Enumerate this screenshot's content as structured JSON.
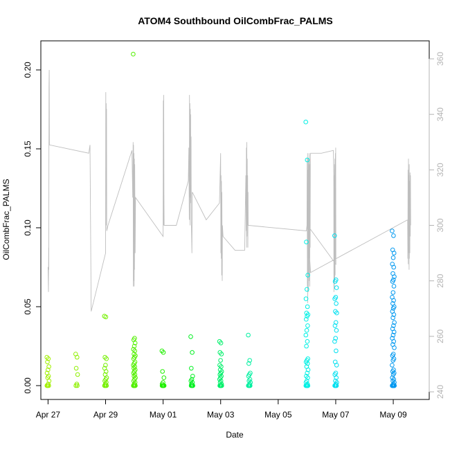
{
  "chart_data": {
    "type": "scatter",
    "title": "ATOM4 Southbound OilCombFrac_PALMS",
    "xlabel": "Date",
    "ylabel": "OilCombFrac_PALMS",
    "ylim": [
      0,
      0.21
    ],
    "y_ticks": [
      0.0,
      0.05,
      0.1,
      0.15,
      0.2
    ],
    "y_tick_labels": [
      "0.00",
      "0.05",
      "0.10",
      "0.15",
      "0.20"
    ],
    "y2lim": [
      240,
      360
    ],
    "y2_ticks": [
      240,
      260,
      280,
      300,
      320,
      340,
      360
    ],
    "y2_tick_labels": [
      "240",
      "260",
      "280",
      "300",
      "320",
      "340",
      "360"
    ],
    "x_axis_type": "date",
    "x_range": [
      "2018-04-26T18:00",
      "2018-05-10T06:00"
    ],
    "x_ticks": [
      "2018-04-27",
      "2018-04-29",
      "2018-05-01",
      "2018-05-03",
      "2018-05-05",
      "2018-05-07",
      "2018-05-09"
    ],
    "x_tick_labels": [
      "Apr 27",
      "Apr 29",
      "May 01",
      "May 03",
      "May 05",
      "May 07",
      "May 09"
    ],
    "grid": false,
    "marker_colors": "rainbow gradient by date, yellow-green (Apr 27) to blue (May 09)",
    "secondary_line_color": "#bebebe",
    "flights": [
      {
        "date": "2018-04-27",
        "color": "#a0f000",
        "values": [
          0.018,
          0.017,
          0.015,
          0.012,
          0.01,
          0.008,
          0.006,
          0.005,
          0.003,
          0.001,
          0,
          0,
          0,
          0
        ]
      },
      {
        "date": "2018-04-28",
        "color": "#8ef000",
        "values": [
          0.02,
          0.018,
          0.011,
          0.007,
          0.001,
          0,
          0
        ]
      },
      {
        "date": "2018-04-29",
        "color": "#74f000",
        "values": [
          0.044,
          0.0435,
          0.018,
          0.017,
          0.013,
          0.011,
          0.009,
          0.007,
          0.005,
          0.004,
          0.003,
          0.002,
          0.001,
          0,
          0,
          0,
          0
        ]
      },
      {
        "date": "2018-04-30",
        "color": "#52f000",
        "values": [
          0.21,
          0.03,
          0.029,
          0.027,
          0.025,
          0.023,
          0.022,
          0.02,
          0.019,
          0.018,
          0.017,
          0.015,
          0.014,
          0.013,
          0.012,
          0.011,
          0.01,
          0.009,
          0.008,
          0.007,
          0.006,
          0.005,
          0.004,
          0.003,
          0.002,
          0.001,
          0,
          0,
          0,
          0,
          0,
          0,
          0,
          0
        ]
      },
      {
        "date": "2018-05-01",
        "color": "#20f000",
        "values": [
          0.022,
          0.021,
          0.009,
          0.005,
          0.002,
          0.001,
          0,
          0,
          0,
          0,
          0,
          0,
          0,
          0
        ]
      },
      {
        "date": "2018-05-02",
        "color": "#00f020",
        "values": [
          0.031,
          0.021,
          0.011,
          0.006,
          0.004,
          0.003,
          0.002,
          0.001,
          0,
          0,
          0,
          0,
          0
        ]
      },
      {
        "date": "2018-05-03",
        "color": "#00f06a",
        "values": [
          0.028,
          0.027,
          0.021,
          0.02,
          0.016,
          0.013,
          0.012,
          0.01,
          0.009,
          0.008,
          0.007,
          0.006,
          0.005,
          0.004,
          0.003,
          0.002,
          0.001,
          0,
          0,
          0,
          0,
          0,
          0,
          0
        ]
      },
      {
        "date": "2018-05-04",
        "color": "#00f0a0",
        "values": [
          0.032,
          0.016,
          0.014,
          0.008,
          0.007,
          0.006,
          0.004,
          0.003,
          0.002,
          0.001,
          0,
          0,
          0,
          0,
          0
        ]
      },
      {
        "date": "2018-05-06",
        "color": "#00f0e4",
        "values": [
          0.167,
          0.143,
          0.091,
          0.07,
          0.061,
          0.055,
          0.05,
          0.046,
          0.045,
          0.044,
          0.042,
          0.038,
          0.035,
          0.032,
          0.028,
          0.025,
          0.017,
          0.016,
          0.015,
          0.014,
          0.012,
          0.01,
          0.008,
          0.006,
          0.005,
          0.003,
          0.002,
          0.001,
          0,
          0,
          0,
          0,
          0,
          0,
          0,
          0,
          0,
          0
        ]
      },
      {
        "date": "2018-05-07",
        "color": "#00e0f0",
        "values": [
          0.095,
          0.067,
          0.066,
          0.062,
          0.056,
          0.055,
          0.052,
          0.047,
          0.046,
          0.04,
          0.038,
          0.035,
          0.03,
          0.028,
          0.022,
          0.015,
          0.013,
          0.008,
          0.007,
          0.005,
          0.003,
          0.002,
          0.001,
          0,
          0,
          0,
          0,
          0,
          0
        ]
      },
      {
        "date": "2018-05-09",
        "color": "#0098f0",
        "values": [
          0.098,
          0.095,
          0.086,
          0.084,
          0.081,
          0.077,
          0.075,
          0.071,
          0.069,
          0.067,
          0.066,
          0.063,
          0.059,
          0.056,
          0.054,
          0.052,
          0.05,
          0.049,
          0.047,
          0.045,
          0.043,
          0.04,
          0.038,
          0.036,
          0.034,
          0.032,
          0.03,
          0.028,
          0.026,
          0.024,
          0.02,
          0.019,
          0.017,
          0.016,
          0.013,
          0.01,
          0.009,
          0.008,
          0.007,
          0.005,
          0.004,
          0.003,
          0.002,
          0.001,
          0,
          0,
          0,
          0,
          0,
          0,
          0,
          0,
          0,
          0,
          0,
          0
        ]
      }
    ],
    "secondary_series": {
      "axis": "right",
      "color": "#bebebe",
      "points": [
        [
          "2018-04-27T00:00",
          285
        ],
        [
          "2018-04-27T00:20",
          276
        ],
        [
          "2018-04-27T00:30",
          292
        ],
        [
          "2018-04-27T00:40",
          284
        ],
        [
          "2018-04-27T00:50",
          350
        ],
        [
          "2018-04-27T01:00",
          356
        ],
        [
          "2018-04-27T01:10",
          329
        ],
        [
          "2018-04-28T10:00",
          326
        ],
        [
          "2018-04-28T11:00",
          329
        ],
        [
          "2018-04-28T12:00",
          269
        ],
        [
          "2018-04-29T00:00",
          290
        ],
        [
          "2018-04-29T00:10",
          348
        ],
        [
          "2018-04-29T00:20",
          300
        ],
        [
          "2018-04-29T00:30",
          344
        ],
        [
          "2018-04-29T00:40",
          327
        ],
        [
          "2018-04-29T00:50",
          342
        ],
        [
          "2018-04-29T01:00",
          298
        ],
        [
          "2018-04-29T02:00",
          300
        ],
        [
          "2018-04-29T22:00",
          327
        ],
        [
          "2018-04-29T22:40",
          310
        ],
        [
          "2018-04-29T23:00",
          330
        ],
        [
          "2018-04-29T23:10",
          278
        ],
        [
          "2018-04-29T23:20",
          329
        ],
        [
          "2018-04-29T23:30",
          280
        ],
        [
          "2018-04-29T23:40",
          326
        ],
        [
          "2018-04-29T23:50",
          278
        ],
        [
          "2018-04-30T00:00",
          324
        ],
        [
          "2018-04-30T00:10",
          284
        ],
        [
          "2018-04-30T00:20",
          322
        ],
        [
          "2018-04-30T00:40",
          290
        ],
        [
          "2018-04-30T01:00",
          310
        ],
        [
          "2018-05-01T00:00",
          296
        ],
        [
          "2018-05-01T00:10",
          345
        ],
        [
          "2018-05-01T00:20",
          300
        ],
        [
          "2018-05-01T00:30",
          347
        ],
        [
          "2018-05-01T00:40",
          312
        ],
        [
          "2018-05-01T00:50",
          300
        ],
        [
          "2018-05-01T11:00",
          300
        ],
        [
          "2018-05-01T21:00",
          316
        ],
        [
          "2018-05-01T21:30",
          328
        ],
        [
          "2018-05-01T21:50",
          302
        ],
        [
          "2018-05-01T22:00",
          347
        ],
        [
          "2018-05-01T22:10",
          310
        ],
        [
          "2018-05-01T22:20",
          344
        ],
        [
          "2018-05-01T22:30",
          300
        ],
        [
          "2018-05-01T22:40",
          342
        ],
        [
          "2018-05-01T22:50",
          310
        ],
        [
          "2018-05-01T23:00",
          340
        ],
        [
          "2018-05-01T23:10",
          308
        ],
        [
          "2018-05-01T23:20",
          332
        ],
        [
          "2018-05-01T23:30",
          302
        ],
        [
          "2018-05-02T00:00",
          290
        ],
        [
          "2018-05-02T00:20",
          312
        ],
        [
          "2018-05-02T12:00",
          302
        ],
        [
          "2018-05-02T23:00",
          308
        ],
        [
          "2018-05-03T00:00",
          326
        ],
        [
          "2018-05-03T00:10",
          290
        ],
        [
          "2018-05-03T00:20",
          318
        ],
        [
          "2018-05-03T00:30",
          288
        ],
        [
          "2018-05-03T00:40",
          316
        ],
        [
          "2018-05-03T00:50",
          282
        ],
        [
          "2018-05-03T01:00",
          312
        ],
        [
          "2018-05-03T01:10",
          298
        ],
        [
          "2018-05-03T01:20",
          280
        ],
        [
          "2018-05-03T01:30",
          300
        ],
        [
          "2018-05-03T02:00",
          296
        ],
        [
          "2018-05-03T12:00",
          291
        ],
        [
          "2018-05-03T20:00",
          291
        ],
        [
          "2018-05-03T21:00",
          318
        ],
        [
          "2018-05-03T21:20",
          298
        ],
        [
          "2018-05-03T21:30",
          328
        ],
        [
          "2018-05-03T21:40",
          292
        ],
        [
          "2018-05-03T21:50",
          330
        ],
        [
          "2018-05-03T22:00",
          296
        ],
        [
          "2018-05-03T22:10",
          324
        ],
        [
          "2018-05-03T22:20",
          300
        ],
        [
          "2018-05-03T22:30",
          318
        ],
        [
          "2018-05-03T22:40",
          292
        ],
        [
          "2018-05-03T22:50",
          312
        ],
        [
          "2018-05-03T23:00",
          300
        ],
        [
          "2018-05-05T23:30",
          298
        ],
        [
          "2018-05-06T00:00",
          300
        ],
        [
          "2018-05-06T00:10",
          324
        ],
        [
          "2018-05-06T00:20",
          278
        ],
        [
          "2018-05-06T00:30",
          326
        ],
        [
          "2018-05-06T00:40",
          272
        ],
        [
          "2018-05-06T00:50",
          320
        ],
        [
          "2018-05-06T01:00",
          282
        ],
        [
          "2018-05-06T01:10",
          324
        ],
        [
          "2018-05-06T01:20",
          276
        ],
        [
          "2018-05-06T01:30",
          322
        ],
        [
          "2018-05-06T01:40",
          280
        ],
        [
          "2018-05-06T01:50",
          326
        ],
        [
          "2018-05-06T02:00",
          290
        ],
        [
          "2018-05-06T02:10",
          324
        ],
        [
          "2018-05-06T02:20",
          278
        ],
        [
          "2018-05-06T02:30",
          322
        ],
        [
          "2018-05-06T02:40",
          292
        ],
        [
          "2018-05-06T02:50",
          325
        ],
        [
          "2018-05-06T03:00",
          326
        ],
        [
          "2018-05-06T12:00",
          326
        ],
        [
          "2018-05-06T22:00",
          327
        ],
        [
          "2018-05-06T22:20",
          318
        ],
        [
          "2018-05-06T22:30",
          276
        ],
        [
          "2018-05-06T22:40",
          318
        ],
        [
          "2018-05-06T22:50",
          278
        ],
        [
          "2018-05-06T23:00",
          322
        ],
        [
          "2018-05-06T23:10",
          280
        ],
        [
          "2018-05-06T23:20",
          324
        ],
        [
          "2018-05-06T23:30",
          282
        ],
        [
          "2018-05-06T23:40",
          326
        ],
        [
          "2018-05-06T23:50",
          288
        ],
        [
          "2018-05-07T00:00",
          328
        ],
        [
          "2018-05-07T00:10",
          286
        ],
        [
          "2018-05-06T00:30",
          300
        ],
        [
          "2018-05-06T03:00",
          283
        ],
        [
          "2018-05-09T12:00",
          302
        ],
        [
          "2018-05-09T12:10",
          288
        ],
        [
          "2018-05-09T12:20",
          320
        ],
        [
          "2018-05-09T12:30",
          286
        ],
        [
          "2018-05-09T12:40",
          324
        ],
        [
          "2018-05-09T12:50",
          290
        ],
        [
          "2018-05-09T13:00",
          318
        ],
        [
          "2018-05-09T13:10",
          284
        ],
        [
          "2018-05-09T13:20",
          322
        ],
        [
          "2018-05-09T13:30",
          288
        ],
        [
          "2018-05-09T13:40",
          316
        ],
        [
          "2018-05-09T13:50",
          290
        ],
        [
          "2018-05-09T14:00",
          319
        ],
        [
          "2018-05-09T14:10",
          296
        ],
        [
          "2018-05-09T14:20",
          318
        ],
        [
          "2018-05-09T14:30",
          300
        ]
      ]
    }
  }
}
